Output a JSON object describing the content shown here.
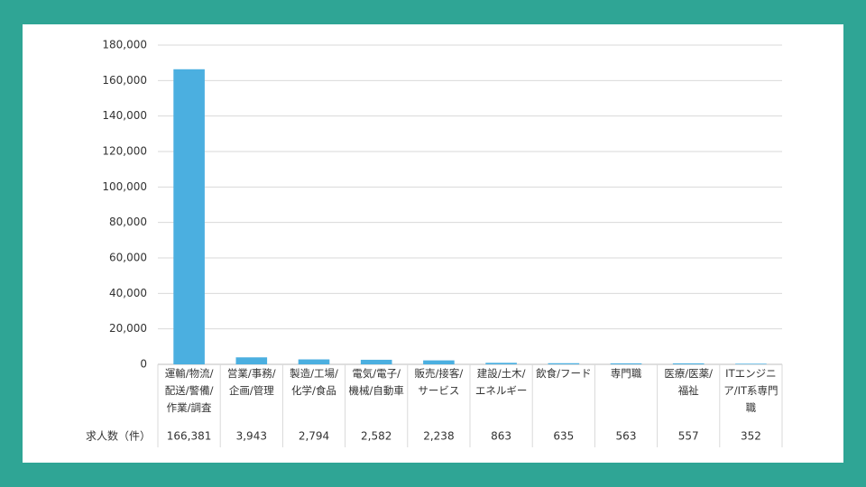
{
  "chart_data": {
    "type": "bar",
    "categories": [
      "運輸/物流/配送/警備/作業/調査",
      "営業/事務/企画/管理",
      "製造/工場/化学/食品",
      "電気/電子/機械/自動車",
      "販売/接客/サービス",
      "建設/土木/エネルギー",
      "飲食/フード",
      "専門職",
      "医療/医薬/福祉",
      "ITエンジニア/IT系専門職"
    ],
    "row_label": "求人数（件）",
    "values": [
      166381,
      3943,
      2794,
      2582,
      2238,
      863,
      635,
      563,
      557,
      352
    ],
    "value_labels": [
      "166,381",
      "3,943",
      "2,794",
      "2,582",
      "2,238",
      "863",
      "635",
      "563",
      "557",
      "352"
    ],
    "color": "#4bafe0",
    "ylim": [
      0,
      180000
    ],
    "yticks": [
      0,
      {
        "value": 20000,
        "label": "20,000"
      },
      {
        "value": 40000,
        "label": "40,000"
      },
      {
        "value": 60000,
        "label": "60,000"
      },
      {
        "value": 80000,
        "label": "80,000"
      },
      {
        "value": 100000,
        "label": "100,000"
      },
      {
        "value": 120000,
        "label": "120,000"
      },
      {
        "value": 140000,
        "label": "140,000"
      },
      {
        "value": 160000,
        "label": "160,000"
      },
      {
        "value": 180000,
        "label": "180,000"
      }
    ],
    "grid": true
  }
}
